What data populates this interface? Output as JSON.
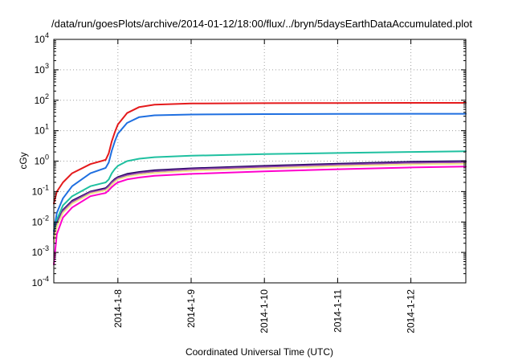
{
  "chart_data": {
    "type": "line",
    "title": "/data/run/goesPlots/archive/2014-01-12/18:00/flux/../bryn/5daysEarthDataAccumulated.plot",
    "xlabel": "Coordinated Universal Time (UTC)",
    "ylabel": "cGy",
    "y_scale": "log",
    "ylim": [
      0.0001,
      10000
    ],
    "y_ticks": [
      {
        "base": "10",
        "exp": "-4",
        "value": 0.0001
      },
      {
        "base": "10",
        "exp": "-3",
        "value": 0.001
      },
      {
        "base": "10",
        "exp": "-2",
        "value": 0.01
      },
      {
        "base": "10",
        "exp": "-1",
        "value": 0.1
      },
      {
        "base": "10",
        "exp": "0",
        "value": 1
      },
      {
        "base": "10",
        "exp": "1",
        "value": 10
      },
      {
        "base": "10",
        "exp": "2",
        "value": 100
      },
      {
        "base": "10",
        "exp": "3",
        "value": 1000
      },
      {
        "base": "10",
        "exp": "4",
        "value": 10000
      }
    ],
    "xlim": [
      "2014-01-07 03:00",
      "2014-01-12 18:00"
    ],
    "x_ticks": [
      {
        "label": "2014-1-8",
        "value": "2014-01-08 00:00"
      },
      {
        "label": "2014-1-9",
        "value": "2014-01-09 00:00"
      },
      {
        "label": "2014-1-10",
        "value": "2014-01-10 00:00"
      },
      {
        "label": "2014-1-11",
        "value": "2014-01-11 00:00"
      },
      {
        "label": "2014-1-12",
        "value": "2014-01-12 00:00"
      }
    ],
    "grid": true,
    "series": [
      {
        "color": "#e41a1c",
        "x": [
          "2014-01-07 03:00",
          "2014-01-07 04:00",
          "2014-01-07 06:00",
          "2014-01-07 09:00",
          "2014-01-07 15:00",
          "2014-01-07 20:00",
          "2014-01-07 21:00",
          "2014-01-07 22:00",
          "2014-01-07 23:00",
          "2014-01-08 00:00",
          "2014-01-08 03:00",
          "2014-01-08 07:00",
          "2014-01-08 12:00",
          "2014-01-09 00:00",
          "2014-01-10 00:00",
          "2014-01-11 00:00",
          "2014-01-12 00:00",
          "2014-01-12 18:00"
        ],
        "y": [
          0.04,
          0.1,
          0.2,
          0.4,
          0.8,
          1.1,
          1.8,
          4.5,
          9,
          16,
          38,
          60,
          72,
          78,
          80,
          81,
          82,
          82
        ]
      },
      {
        "color": "#1f6fe0",
        "x": [
          "2014-01-07 03:00",
          "2014-01-07 04:00",
          "2014-01-07 06:00",
          "2014-01-07 09:00",
          "2014-01-07 15:00",
          "2014-01-07 20:00",
          "2014-01-07 21:00",
          "2014-01-07 22:00",
          "2014-01-07 23:00",
          "2014-01-08 00:00",
          "2014-01-08 03:00",
          "2014-01-08 07:00",
          "2014-01-08 12:00",
          "2014-01-09 00:00",
          "2014-01-10 00:00",
          "2014-01-11 00:00",
          "2014-01-12 00:00",
          "2014-01-12 18:00"
        ],
        "y": [
          0.005,
          0.02,
          0.06,
          0.15,
          0.4,
          0.6,
          0.9,
          2.2,
          4.5,
          8,
          18,
          28,
          32,
          34,
          35,
          35.5,
          36,
          36
        ]
      },
      {
        "color": "#1fc0a0",
        "x": [
          "2014-01-07 03:00",
          "2014-01-07 04:00",
          "2014-01-07 06:00",
          "2014-01-07 09:00",
          "2014-01-07 15:00",
          "2014-01-07 20:00",
          "2014-01-07 21:00",
          "2014-01-07 22:00",
          "2014-01-07 23:00",
          "2014-01-08 00:00",
          "2014-01-08 03:00",
          "2014-01-08 07:00",
          "2014-01-08 12:00",
          "2014-01-09 00:00",
          "2014-01-10 00:00",
          "2014-01-11 00:00",
          "2014-01-12 00:00",
          "2014-01-12 18:00"
        ],
        "y": [
          0.004,
          0.012,
          0.035,
          0.07,
          0.15,
          0.2,
          0.25,
          0.4,
          0.55,
          0.7,
          1.0,
          1.2,
          1.35,
          1.5,
          1.7,
          1.85,
          2.0,
          2.1
        ]
      },
      {
        "color": "#200060",
        "x": [
          "2014-01-07 03:00",
          "2014-01-07 04:00",
          "2014-01-07 06:00",
          "2014-01-07 09:00",
          "2014-01-07 15:00",
          "2014-01-07 20:00",
          "2014-01-07 21:00",
          "2014-01-07 22:00",
          "2014-01-07 23:00",
          "2014-01-08 00:00",
          "2014-01-08 03:00",
          "2014-01-08 07:00",
          "2014-01-08 12:00",
          "2014-01-09 00:00",
          "2014-01-10 00:00",
          "2014-01-11 00:00",
          "2014-01-12 00:00",
          "2014-01-12 18:00"
        ],
        "y": [
          0.003,
          0.009,
          0.025,
          0.05,
          0.1,
          0.13,
          0.16,
          0.21,
          0.26,
          0.3,
          0.38,
          0.44,
          0.5,
          0.58,
          0.7,
          0.82,
          0.95,
          1.0
        ]
      },
      {
        "color": "#8e44ad",
        "x": [
          "2014-01-07 03:00",
          "2014-01-07 04:00",
          "2014-01-07 06:00",
          "2014-01-07 09:00",
          "2014-01-07 15:00",
          "2014-01-07 20:00",
          "2014-01-07 21:00",
          "2014-01-07 22:00",
          "2014-01-07 23:00",
          "2014-01-08 00:00",
          "2014-01-08 03:00",
          "2014-01-08 07:00",
          "2014-01-08 12:00",
          "2014-01-09 00:00",
          "2014-01-10 00:00",
          "2014-01-11 00:00",
          "2014-01-12 00:00",
          "2014-01-12 18:00"
        ],
        "y": [
          0.0028,
          0.0085,
          0.023,
          0.046,
          0.095,
          0.12,
          0.15,
          0.2,
          0.24,
          0.28,
          0.35,
          0.41,
          0.46,
          0.54,
          0.65,
          0.76,
          0.88,
          0.93
        ]
      },
      {
        "color": "#f0e68c",
        "x": [
          "2014-01-07 03:00",
          "2014-01-07 04:00",
          "2014-01-07 06:00",
          "2014-01-07 09:00",
          "2014-01-07 15:00",
          "2014-01-07 20:00",
          "2014-01-07 21:00",
          "2014-01-07 22:00",
          "2014-01-07 23:00",
          "2014-01-08 00:00",
          "2014-01-08 03:00",
          "2014-01-08 07:00",
          "2014-01-08 12:00",
          "2014-01-09 00:00",
          "2014-01-10 00:00",
          "2014-01-11 00:00",
          "2014-01-12 00:00",
          "2014-01-12 18:00"
        ],
        "y": [
          0.0022,
          0.007,
          0.02,
          0.04,
          0.085,
          0.11,
          0.13,
          0.17,
          0.21,
          0.25,
          0.31,
          0.36,
          0.41,
          0.48,
          0.58,
          0.68,
          0.78,
          0.82
        ]
      },
      {
        "color": "#ff00cc",
        "x": [
          "2014-01-07 03:00",
          "2014-01-07 04:00",
          "2014-01-07 06:00",
          "2014-01-07 09:00",
          "2014-01-07 15:00",
          "2014-01-07 20:00",
          "2014-01-07 21:00",
          "2014-01-07 22:00",
          "2014-01-07 23:00",
          "2014-01-08 00:00",
          "2014-01-08 03:00",
          "2014-01-08 07:00",
          "2014-01-08 12:00",
          "2014-01-09 00:00",
          "2014-01-10 00:00",
          "2014-01-11 00:00",
          "2014-01-12 00:00",
          "2014-01-12 18:00"
        ],
        "y": [
          0.0004,
          0.004,
          0.014,
          0.03,
          0.07,
          0.09,
          0.11,
          0.14,
          0.17,
          0.2,
          0.25,
          0.29,
          0.33,
          0.38,
          0.46,
          0.54,
          0.62,
          0.66
        ]
      }
    ]
  }
}
